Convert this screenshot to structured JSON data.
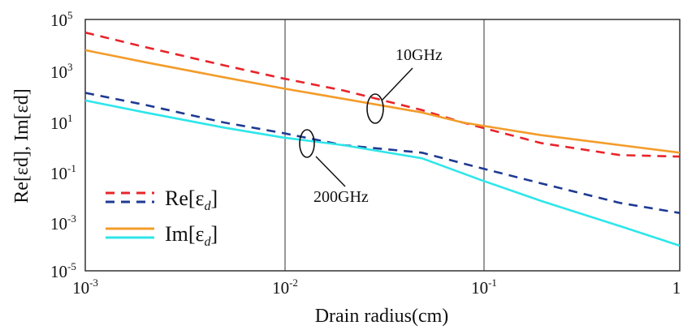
{
  "chart_data": {
    "type": "line",
    "x_scale": "log",
    "y_scale": "log",
    "xlabel": "Drain radius(cm)",
    "ylabel": "Re[εd],  Im[εd]",
    "xlim": [
      0.001,
      1
    ],
    "ylim": [
      1e-05,
      100000
    ],
    "grid": "major decades on x",
    "x_ticks": [
      {
        "base": "10",
        "exp": "-3",
        "value": 0.001
      },
      {
        "base": "10",
        "exp": "-2",
        "value": 0.01
      },
      {
        "base": "10",
        "exp": "-1",
        "value": 0.1
      },
      {
        "base": "1",
        "exp": "",
        "value": 1
      }
    ],
    "y_ticks": [
      {
        "base": "10",
        "exp": "5",
        "value": 100000
      },
      {
        "base": "10",
        "exp": "3",
        "value": 1000
      },
      {
        "base": "10",
        "exp": "1",
        "value": 10
      },
      {
        "base": "10",
        "exp": "-1",
        "value": 0.1
      },
      {
        "base": "10",
        "exp": "-3",
        "value": 0.001
      },
      {
        "base": "10",
        "exp": "-5",
        "value": 1e-05
      }
    ],
    "annotations": [
      {
        "text": "10GHz",
        "target": "10 GHz curves"
      },
      {
        "text": "200GHz",
        "target": "200 GHz curves"
      }
    ],
    "legend": {
      "placement": "lower-left",
      "entries": [
        {
          "prefix": "Re[",
          "symbol": "ε",
          "sub": "d",
          "suffix": "]",
          "style": "dashed",
          "colors": [
            "#e8242a",
            "#1f3a93"
          ]
        },
        {
          "prefix": "Im[",
          "symbol": "ε",
          "sub": "d",
          "suffix": "]",
          "style": "solid",
          "colors": [
            "#f39c2a",
            "#2ee6ea"
          ]
        }
      ]
    },
    "series": [
      {
        "quantity": "Re",
        "frequency": "10GHz",
        "color": "#e8242a",
        "dash": true,
        "x": [
          0.001,
          0.002,
          0.005,
          0.01,
          0.02,
          0.05,
          0.08,
          0.1,
          0.2,
          0.5,
          1
        ],
        "y": [
          30000,
          8000,
          1500,
          450,
          150,
          25,
          8,
          5,
          1.2,
          0.4,
          0.35
        ]
      },
      {
        "quantity": "Im",
        "frequency": "10GHz",
        "color": "#f39c2a",
        "dash": false,
        "x": [
          0.001,
          0.002,
          0.005,
          0.01,
          0.02,
          0.05,
          0.08,
          0.1,
          0.2,
          0.5,
          1
        ],
        "y": [
          6000,
          2000,
          500,
          180,
          70,
          20,
          8,
          6,
          2.5,
          1,
          0.5
        ]
      },
      {
        "quantity": "Re",
        "frequency": "200GHz",
        "color": "#1f3a93",
        "dash": true,
        "x": [
          0.001,
          0.002,
          0.005,
          0.01,
          0.02,
          0.05,
          0.1,
          0.2,
          0.5,
          1
        ],
        "y": [
          120,
          40,
          8,
          3,
          1,
          0.5,
          0.12,
          0.03,
          0.005,
          0.002
        ]
      },
      {
        "quantity": "Im",
        "frequency": "200GHz",
        "color": "#2ee6ea",
        "dash": false,
        "x": [
          0.001,
          0.002,
          0.005,
          0.01,
          0.02,
          0.05,
          0.1,
          0.2,
          0.5,
          1
        ],
        "y": [
          60,
          20,
          5,
          2,
          1,
          0.3,
          0.04,
          0.006,
          0.0006,
          0.0001
        ]
      }
    ]
  }
}
